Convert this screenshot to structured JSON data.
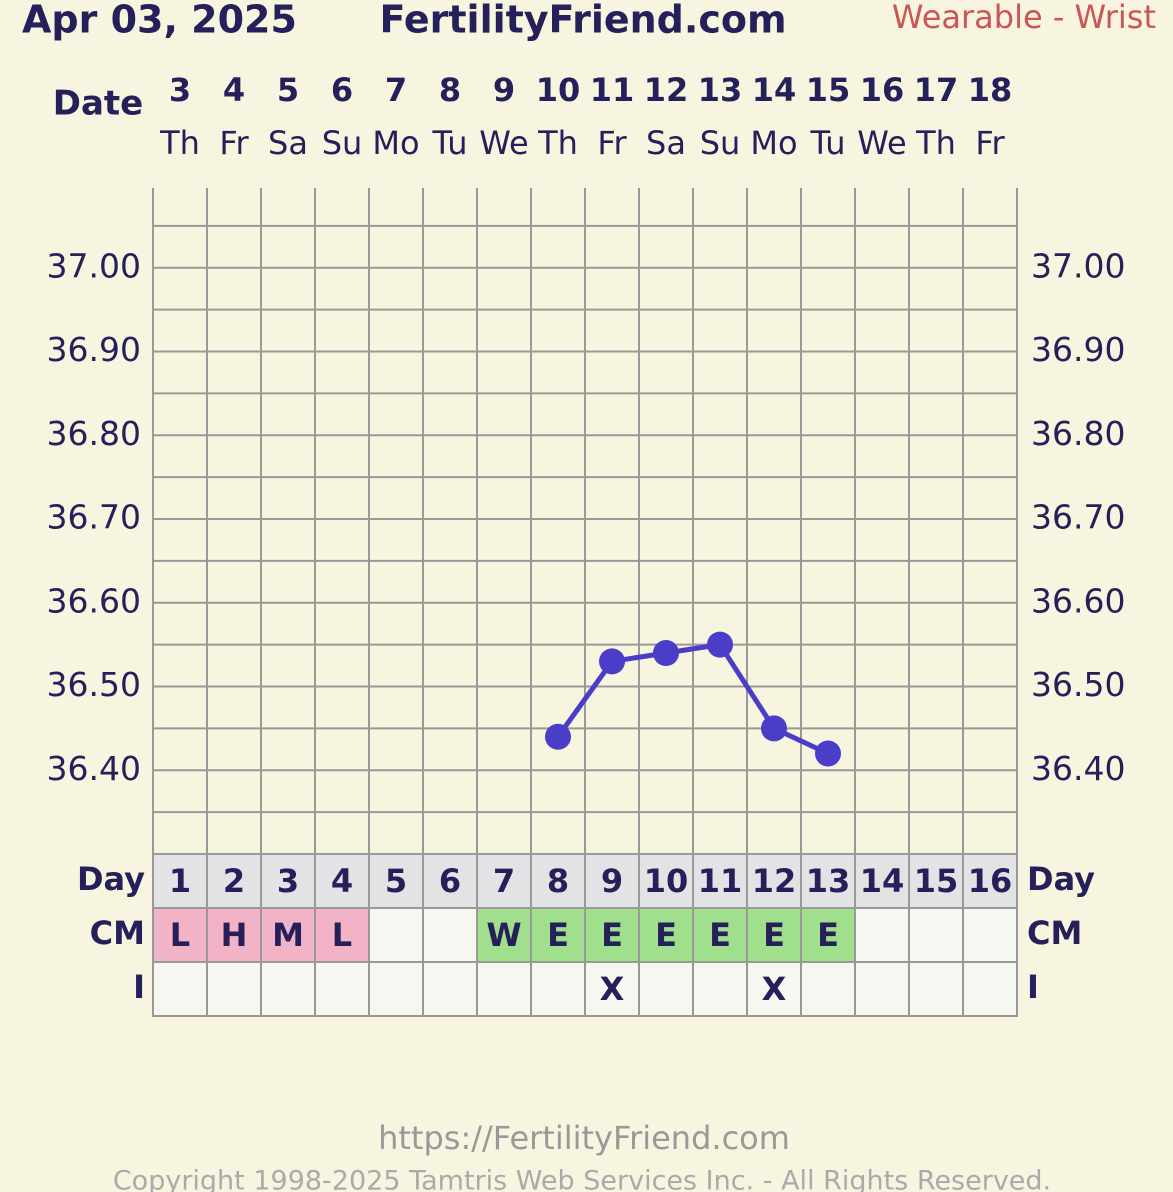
{
  "chart_data": {
    "type": "line",
    "date": "Apr 03, 2025",
    "title": "FertilityFriend.com",
    "subtitle": "Wearable - Wrist",
    "x_label": "Date",
    "categories": [
      "3",
      "4",
      "5",
      "6",
      "7",
      "8",
      "9",
      "10",
      "11",
      "12",
      "13",
      "14",
      "15",
      "16",
      "17",
      "18"
    ],
    "weekdays": [
      "Th",
      "Fr",
      "Sa",
      "Su",
      "Mo",
      "Tu",
      "We",
      "Th",
      "Fr",
      "Sa",
      "Su",
      "Mo",
      "Tu",
      "We",
      "Th",
      "Fr"
    ],
    "series": [
      {
        "color": "#4a3dc8",
        "values": [
          null,
          null,
          null,
          null,
          null,
          null,
          null,
          36.44,
          36.53,
          36.54,
          36.55,
          36.45,
          36.42,
          null,
          null,
          null
        ]
      }
    ],
    "ylim": [
      36.3,
      37.1
    ],
    "yticks": [
      {
        "value": 36.4,
        "label": "36.40"
      },
      {
        "value": 36.5,
        "label": "36.50"
      },
      {
        "value": 36.6,
        "label": "36.60"
      },
      {
        "value": 36.7,
        "label": "36.70"
      },
      {
        "value": 36.8,
        "label": "36.80"
      },
      {
        "value": 36.9,
        "label": "36.90"
      },
      {
        "value": 37.0,
        "label": "37.00"
      }
    ],
    "minor_yticks": [
      36.3,
      36.35,
      36.45,
      36.55,
      36.65,
      36.75,
      36.85,
      36.95,
      37.05
    ],
    "grid": true,
    "rows": [
      {
        "label": "Day",
        "values": [
          "1",
          "2",
          "3",
          "4",
          "5",
          "6",
          "7",
          "8",
          "9",
          "10",
          "11",
          "12",
          "13",
          "14",
          "15",
          "16"
        ],
        "background": "#e3e3e6"
      },
      {
        "label": "CM",
        "values": [
          "L",
          "H",
          "M",
          "L",
          null,
          null,
          "W",
          "E",
          "E",
          "E",
          "E",
          "E",
          "E",
          null,
          null,
          null
        ],
        "background": "#f7f7f2"
      },
      {
        "label": "I",
        "values": [
          null,
          null,
          null,
          null,
          null,
          null,
          null,
          null,
          "X",
          null,
          null,
          "X",
          null,
          null,
          null,
          null
        ],
        "background": "#f7f7f2"
      }
    ],
    "cm_colors": {
      "L": "#f2b3c7",
      "H": "#f2b3c7",
      "M": "#f2b3c7",
      "W": "#a0e08c",
      "E": "#a0e08c"
    },
    "footer_url": "https://FertilityFriend.com",
    "copyright": "Copyright 1998-2025 Tamtris Web Services Inc. - All Rights Reserved."
  }
}
